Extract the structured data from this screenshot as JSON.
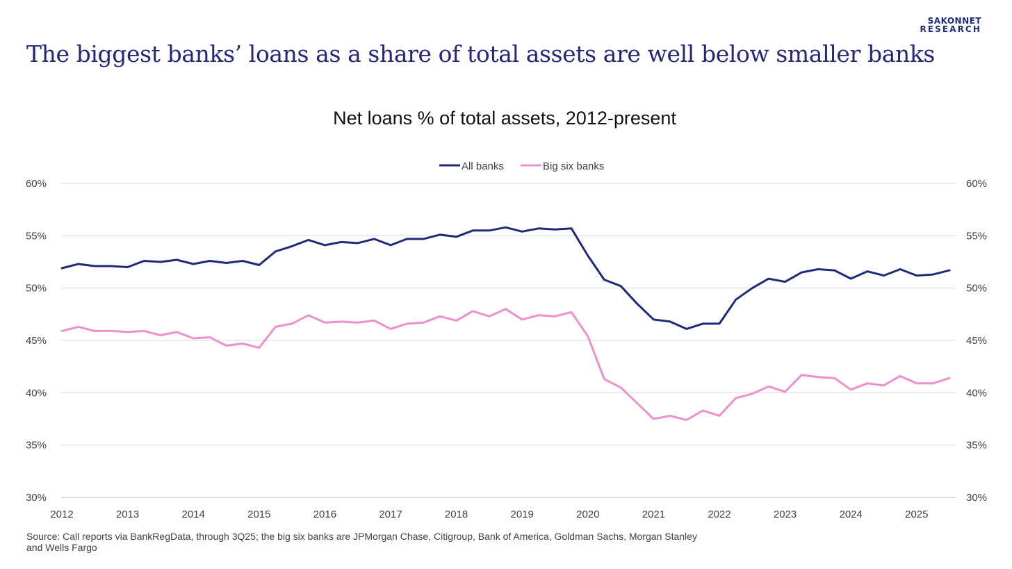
{
  "logo": {
    "line1": "SAKONNET",
    "line2": "RESEARCH"
  },
  "headline": "The biggest banks’ loans as a share of total assets are well below smaller banks",
  "source": "Source: Call reports via BankRegData, through 3Q25; the big six banks are JPMorgan Chase, Citigroup, Bank of America, Goldman Sachs, Morgan Stanley and Wells Fargo",
  "chart_data": {
    "type": "line",
    "title": "Net loans % of total assets, 2012-present",
    "xlabel": "",
    "ylabel": "",
    "ylim": [
      30,
      60
    ],
    "y_ticks": [
      60,
      55,
      50,
      45,
      40,
      35,
      30
    ],
    "y_tick_labels": [
      "60%",
      "55%",
      "50%",
      "45%",
      "40%",
      "35%",
      "30%"
    ],
    "x_ticks": [
      "2012",
      "2013",
      "2014",
      "2015",
      "2016",
      "2017",
      "2018",
      "2019",
      "2020",
      "2021",
      "2022",
      "2023",
      "2024",
      "2025"
    ],
    "legend_position": "top-center",
    "grid": true,
    "x_start": "1Q12",
    "x_frequency": "quarterly",
    "series": [
      {
        "name": "All banks",
        "color": "#1f2a7a",
        "values": [
          51.9,
          52.3,
          52.1,
          52.1,
          52.0,
          52.6,
          52.5,
          52.7,
          52.3,
          52.6,
          52.4,
          52.6,
          52.2,
          53.5,
          54.0,
          54.6,
          54.1,
          54.4,
          54.3,
          54.7,
          54.1,
          54.7,
          54.7,
          55.1,
          54.9,
          55.5,
          55.5,
          55.8,
          55.4,
          55.7,
          55.6,
          55.7,
          53.1,
          50.8,
          50.2,
          48.5,
          47.0,
          46.8,
          46.1,
          46.6,
          46.6,
          48.9,
          50.0,
          50.9,
          50.6,
          51.5,
          51.8,
          51.7,
          50.9,
          51.6,
          51.2,
          51.8,
          51.2,
          51.3,
          51.7
        ]
      },
      {
        "name": "Big six banks",
        "color": "#ee8fcf",
        "values": [
          45.9,
          46.3,
          45.9,
          45.9,
          45.8,
          45.9,
          45.5,
          45.8,
          45.2,
          45.3,
          44.5,
          44.7,
          44.3,
          46.3,
          46.6,
          47.4,
          46.7,
          46.8,
          46.7,
          46.9,
          46.1,
          46.6,
          46.7,
          47.3,
          46.9,
          47.8,
          47.3,
          48.0,
          47.0,
          47.4,
          47.3,
          47.7,
          45.4,
          41.3,
          40.5,
          39.0,
          37.5,
          37.8,
          37.4,
          38.3,
          37.8,
          39.5,
          39.9,
          40.6,
          40.1,
          41.7,
          41.5,
          41.4,
          40.3,
          40.9,
          40.7,
          41.6,
          40.9,
          40.9,
          41.4
        ]
      }
    ]
  }
}
